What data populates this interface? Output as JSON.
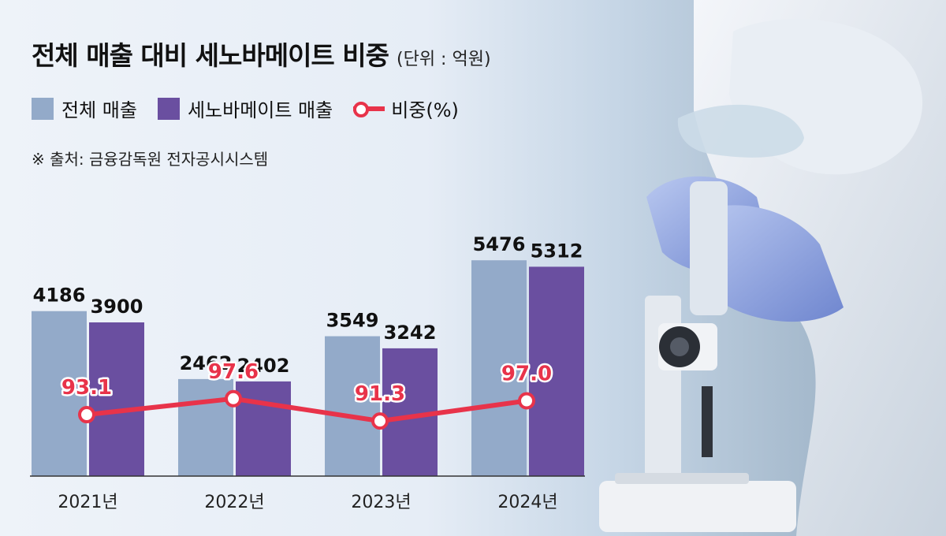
{
  "title": "전체 매출 대비 세노바메이트 비중",
  "unit": "(단위 : 억원)",
  "source": "※ 출처: 금융감독원 전자공시시스템",
  "colors": {
    "total": "#93aac9",
    "cenobamate": "#6a4fa0",
    "ratio": "#e8334a"
  },
  "chart_data": {
    "type": "bar",
    "categories": [
      "2021년",
      "2022년",
      "2023년",
      "2024년"
    ],
    "series": [
      {
        "name": "전체 매출",
        "type": "bar",
        "values": [
          4186,
          2462,
          3549,
          5476
        ]
      },
      {
        "name": "세노바메이트 매출",
        "type": "bar",
        "values": [
          3900,
          2402,
          3242,
          5312
        ]
      },
      {
        "name": "비중(%)",
        "type": "line",
        "values": [
          93.1,
          97.6,
          91.3,
          97.0
        ],
        "labels": [
          "93.1",
          "97.6",
          "91.3",
          "97.0"
        ]
      }
    ],
    "value_labels": true,
    "grid": false,
    "legend_position": "top-left"
  }
}
